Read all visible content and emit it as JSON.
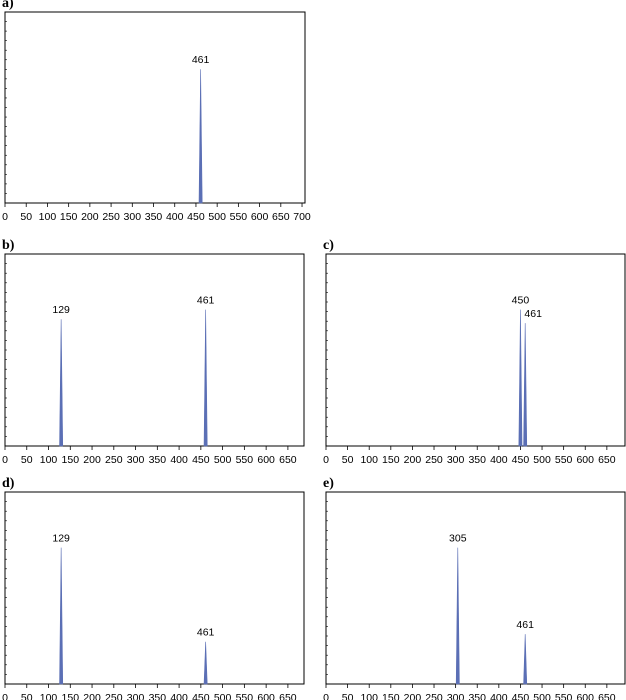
{
  "chart_data": [
    {
      "type": "spectrum",
      "label": "a)",
      "x": [
        461
      ],
      "values": [
        70
      ],
      "color": "#5b6fb5",
      "xlim": [
        0,
        707
      ],
      "xticks": [
        0,
        50,
        100,
        150,
        200,
        250,
        300,
        350,
        400,
        450,
        500,
        550,
        600,
        650,
        700
      ],
      "ylim": [
        0,
        100
      ]
    },
    {
      "type": "spectrum",
      "label": "b)",
      "x": [
        129,
        461
      ],
      "values": [
        66,
        71
      ],
      "color": "#5b6fb5",
      "xlim": [
        0,
        687
      ],
      "xticks": [
        0,
        50,
        100,
        150,
        200,
        250,
        300,
        350,
        400,
        450,
        500,
        550,
        600,
        650
      ],
      "ylim": [
        0,
        100
      ]
    },
    {
      "type": "spectrum",
      "label": "c)",
      "x": [
        450,
        461
      ],
      "values": [
        71,
        64
      ],
      "color": "#5b6fb5",
      "xlim": [
        0,
        692
      ],
      "xticks": [
        0,
        50,
        100,
        150,
        200,
        250,
        300,
        350,
        400,
        450,
        500,
        550,
        600,
        650
      ],
      "ylim": [
        0,
        100
      ]
    },
    {
      "type": "spectrum",
      "label": "d)",
      "x": [
        129,
        461
      ],
      "values": [
        71,
        22
      ],
      "color": "#5b6fb5",
      "xlim": [
        0,
        687
      ],
      "xticks": [
        0,
        50,
        100,
        150,
        200,
        250,
        300,
        350,
        400,
        450,
        500,
        550,
        600,
        650
      ],
      "ylim": [
        0,
        100
      ]
    },
    {
      "type": "spectrum",
      "label": "e)",
      "x": [
        305,
        461
      ],
      "values": [
        71,
        26
      ],
      "color": "#5b6fb5",
      "xlim": [
        0,
        692
      ],
      "xticks": [
        0,
        50,
        100,
        150,
        200,
        250,
        300,
        350,
        400,
        450,
        500,
        550,
        600,
        650
      ],
      "ylim": [
        0,
        100
      ]
    }
  ]
}
